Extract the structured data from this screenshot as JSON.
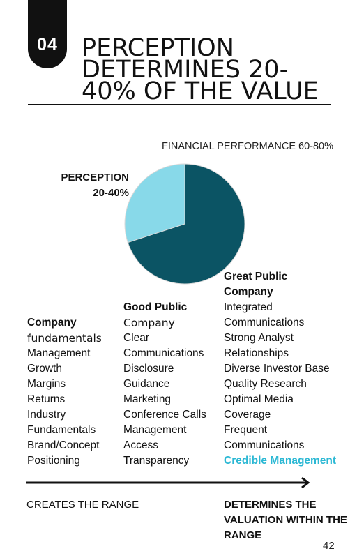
{
  "badge": {
    "number": "04"
  },
  "title": {
    "lines": [
      "PERCEPTION",
      "DETERMINES 20-",
      "40% OF THE VALUE"
    ]
  },
  "chart_data": {
    "type": "pie",
    "slices": [
      {
        "label": "FINANCIAL PERFORMANCE 60-80%",
        "value": 70,
        "color": "#0b5464"
      },
      {
        "label": "PERCEPTION 20-40%",
        "value": 30,
        "color": "#88d9e9"
      }
    ],
    "labels": {
      "financial": "FINANCIAL PERFORMANCE 60-80%",
      "perception_line1": "PERCEPTION",
      "perception_line2": "20-40%"
    }
  },
  "columns": {
    "company": {
      "heading": "Company",
      "subheading": "fundamentals",
      "items": [
        "Management",
        "Growth",
        "Margins",
        "Returns",
        "Industry",
        "Fundamentals",
        "Brand/Concept",
        "Positioning"
      ]
    },
    "good_public": {
      "heading": "Good Public",
      "subheading": "Company",
      "items": [
        "Clear",
        "Communications",
        "Disclosure",
        "Guidance",
        "Marketing",
        "Conference Calls",
        "Management",
        "Access",
        "Transparency"
      ]
    },
    "great_public": {
      "heading_line1": "Great Public",
      "heading_line2": "Company",
      "items": [
        "Integrated",
        "Communications",
        "Strong Analyst",
        "Relationships",
        "Diverse Investor Base",
        "Quality Research",
        "Optimal Media",
        "Coverage",
        "Frequent",
        "Communications"
      ],
      "highlight": "Credible Management"
    }
  },
  "footer": {
    "creates": "CREATES THE RANGE",
    "determines_lines": [
      "DETERMINES THE",
      "VALUATION WITHIN THE",
      "RANGE"
    ],
    "page_number": "42"
  },
  "colors": {
    "accent": "#2bb8d4",
    "dark_teal": "#0b5464",
    "light_teal": "#88d9e9"
  }
}
